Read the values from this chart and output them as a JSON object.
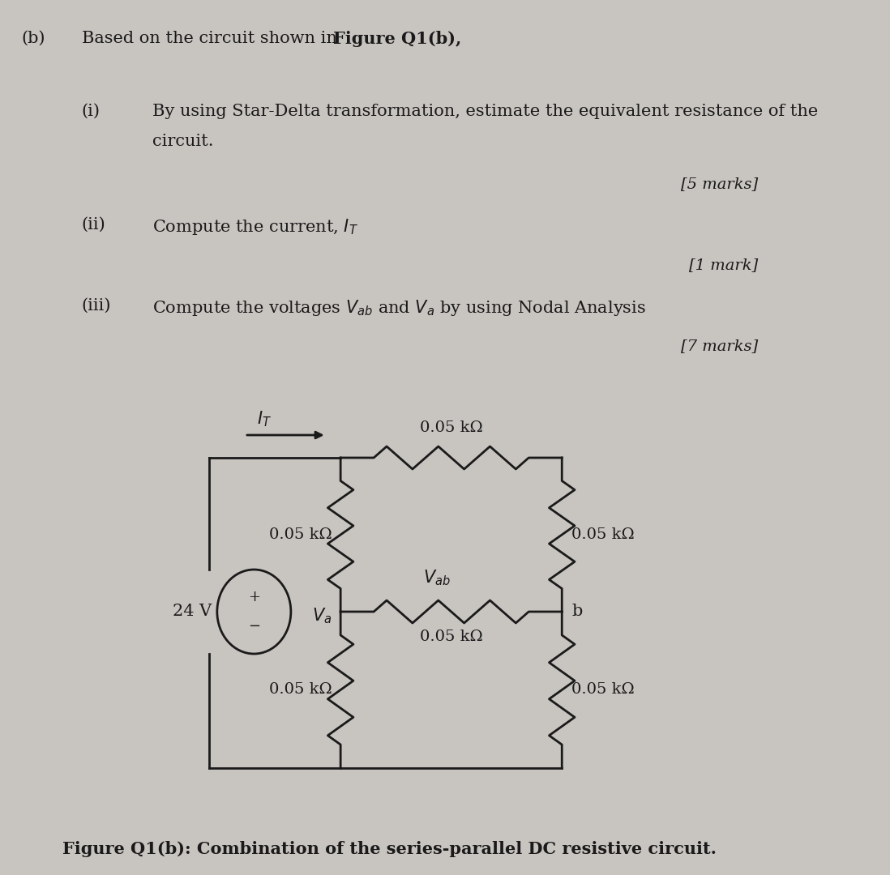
{
  "bg_color": "#c8c4c0",
  "text_color": "#1a1a1a",
  "resistor_label": "0.05 kΩ",
  "voltage_label": "24 V",
  "IT_label": "$I_T$",
  "Va_label": "$V_a$",
  "Vab_label": "$V_{ab}$",
  "b_label": "b",
  "caption": "Figure Q1(b): Combination of the series-parallel DC resistive circuit."
}
